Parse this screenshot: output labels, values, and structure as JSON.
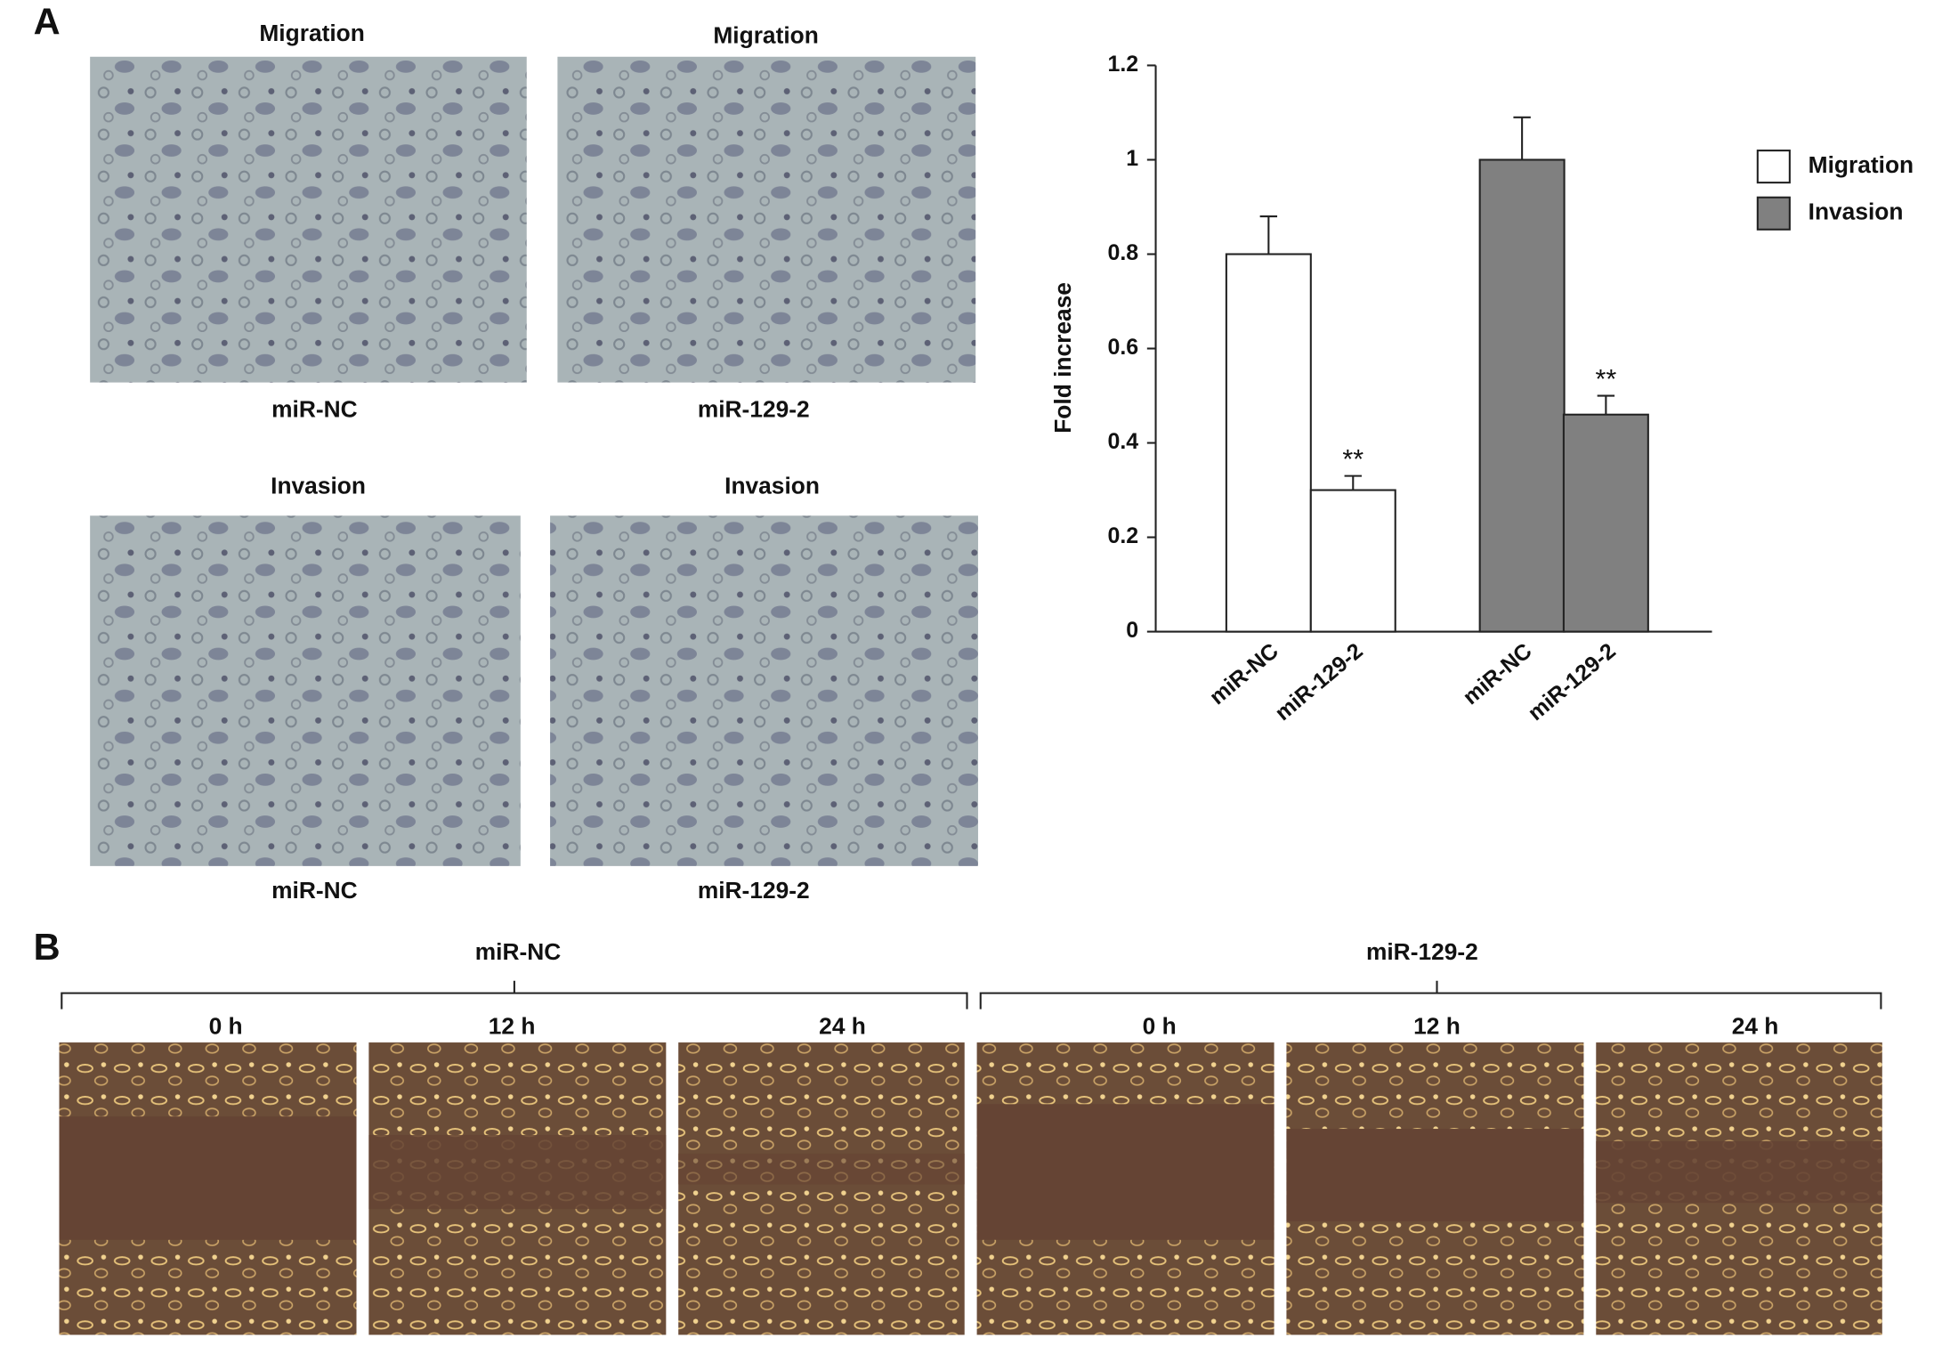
{
  "panel_a": {
    "label": "A",
    "images": [
      {
        "title": "Migration",
        "caption": "miR-NC"
      },
      {
        "title": "Migration",
        "caption": "miR-129-2"
      },
      {
        "title": "Invasion",
        "caption": "miR-NC"
      },
      {
        "title": "Invasion",
        "caption": "miR-129-2"
      }
    ]
  },
  "panel_b": {
    "label": "B",
    "groups": [
      {
        "name": "miR-NC",
        "times": [
          "0 h",
          "12 h",
          "24 h"
        ]
      },
      {
        "name": "miR-129-2",
        "times": [
          "0 h",
          "12 h",
          "24 h"
        ]
      }
    ]
  },
  "chart_data": {
    "type": "bar",
    "y_label": "Fold increase",
    "categories": [
      "miR-NC",
      "miR-129-2",
      "miR-NC",
      "miR-129-2"
    ],
    "series": [
      {
        "name": "Migration",
        "color": "#ffffff",
        "values": [
          0.8,
          0.3,
          null,
          null
        ],
        "errors": [
          0.08,
          0.03,
          null,
          null
        ],
        "annotations": [
          null,
          "**",
          null,
          null
        ]
      },
      {
        "name": "Invasion",
        "color": "#808080",
        "values": [
          null,
          null,
          1.0,
          0.46
        ],
        "errors": [
          null,
          null,
          0.09,
          0.04
        ],
        "annotations": [
          null,
          null,
          null,
          "**"
        ]
      }
    ],
    "ylim": [
      0,
      1.2
    ],
    "yticks": [
      0,
      0.2,
      0.4,
      0.6,
      0.8,
      1,
      1.2
    ],
    "legend": "right"
  }
}
